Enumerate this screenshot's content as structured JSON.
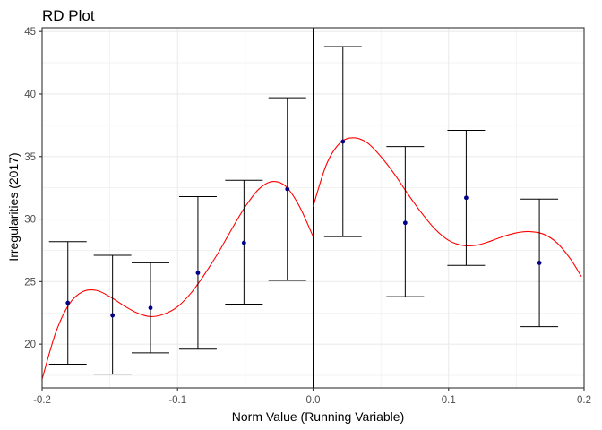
{
  "chart_data": {
    "type": "scatter",
    "title": "RD Plot",
    "xlabel": "Norm Value (Running Variable)",
    "ylabel": "Irregularities (2017)",
    "xlim": [
      -0.2,
      0.2
    ],
    "ylim": [
      16.5,
      45.3
    ],
    "x_ticks": [
      -0.2,
      -0.1,
      0.0,
      0.1,
      0.2
    ],
    "x_tick_labels": [
      "-0.2",
      "-0.1",
      "0.0",
      "0.1",
      "0.2"
    ],
    "y_ticks": [
      20,
      25,
      30,
      35,
      40,
      45
    ],
    "y_tick_labels": [
      "20",
      "25",
      "30",
      "35",
      "40",
      "45"
    ],
    "grid": true,
    "cutoff": 0.0,
    "points": [
      {
        "x": -0.181,
        "y": 23.3,
        "lo": 18.4,
        "hi": 28.2
      },
      {
        "x": -0.148,
        "y": 22.3,
        "lo": 17.6,
        "hi": 27.1
      },
      {
        "x": -0.12,
        "y": 22.9,
        "lo": 19.3,
        "hi": 26.5
      },
      {
        "x": -0.085,
        "y": 25.7,
        "lo": 19.6,
        "hi": 31.8
      },
      {
        "x": -0.051,
        "y": 28.1,
        "lo": 23.2,
        "hi": 33.1
      },
      {
        "x": -0.019,
        "y": 32.4,
        "lo": 25.1,
        "hi": 39.7
      },
      {
        "x": 0.022,
        "y": 36.2,
        "lo": 28.6,
        "hi": 43.8
      },
      {
        "x": 0.068,
        "y": 29.7,
        "lo": 23.8,
        "hi": 35.8
      },
      {
        "x": 0.113,
        "y": 31.7,
        "lo": 26.3,
        "hi": 37.1
      },
      {
        "x": 0.167,
        "y": 26.5,
        "lo": 21.4,
        "hi": 31.6
      }
    ],
    "fit_left": {
      "x": [
        -0.2,
        -0.19,
        -0.18,
        -0.17,
        -0.16,
        -0.15,
        -0.14,
        -0.13,
        -0.12,
        -0.11,
        -0.1,
        -0.09,
        -0.08,
        -0.07,
        -0.06,
        -0.05,
        -0.04,
        -0.03,
        -0.02,
        -0.01,
        0.0
      ],
      "y": [
        17.2,
        20.9,
        23.2,
        24.2,
        24.3,
        23.8,
        23.1,
        22.5,
        22.2,
        22.4,
        23.0,
        24.1,
        25.6,
        27.3,
        29.2,
        31.0,
        32.4,
        33.0,
        32.6,
        31.0,
        28.6
      ]
    },
    "fit_right": {
      "x": [
        0.0,
        0.01,
        0.02,
        0.03,
        0.04,
        0.05,
        0.06,
        0.07,
        0.08,
        0.09,
        0.1,
        0.11,
        0.12,
        0.13,
        0.14,
        0.15,
        0.16,
        0.17,
        0.18,
        0.19,
        0.198
      ],
      "y": [
        31.0,
        34.4,
        36.1,
        36.5,
        36.1,
        35.0,
        33.6,
        32.0,
        30.5,
        29.2,
        28.3,
        27.9,
        27.9,
        28.2,
        28.6,
        28.9,
        29.0,
        28.8,
        28.1,
        26.8,
        25.4
      ]
    },
    "colors": {
      "point": "#00008b",
      "fit": "#ff0000",
      "errorbar": "#000000",
      "cutoff": "#000000",
      "grid": "#ebebeb",
      "panel_border": "#333333"
    }
  }
}
